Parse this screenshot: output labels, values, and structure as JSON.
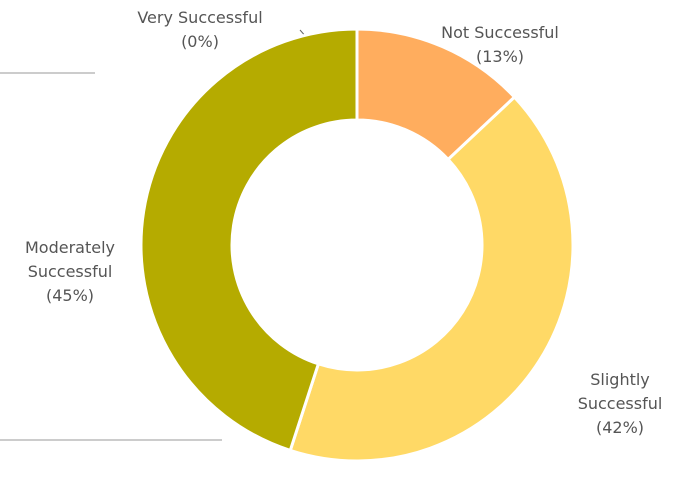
{
  "chart_data": {
    "type": "donut",
    "categories": [
      "Not Successful",
      "Slightly Successful",
      "Moderately Successful",
      "Very Successful"
    ],
    "values": [
      13,
      42,
      45,
      0
    ],
    "value_labels": [
      "(13%)",
      "(42%)",
      "(45%)",
      "(0%)"
    ],
    "colors": [
      "#ffad5e",
      "#ffd966",
      "#b5ab00",
      "#8a8a8a"
    ]
  }
}
